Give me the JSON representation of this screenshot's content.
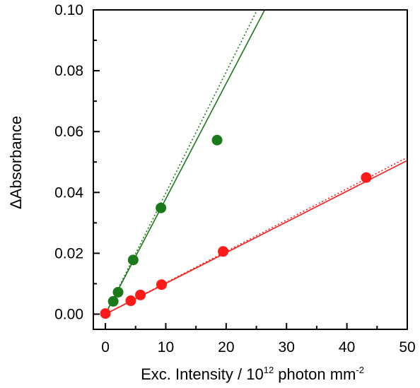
{
  "chart_data": {
    "type": "scatter",
    "title": "",
    "xlabel_main": "Exc. Intensity / 10",
    "xlabel_sup": "12",
    "xlabel_tail": " photon mm",
    "xlabel_sup2": "-2",
    "ylabel": "ΔAbsorbance",
    "xlim": [
      -2,
      50
    ],
    "ylim": [
      -0.005,
      0.1
    ],
    "xticks": [
      0,
      10,
      20,
      30,
      40,
      50
    ],
    "xtick_labels": [
      "0",
      "10",
      "20",
      "30",
      "40",
      "50"
    ],
    "yticks": [
      0.0,
      0.02,
      0.04,
      0.06,
      0.08,
      0.1
    ],
    "ytick_labels": [
      "0.00",
      "0.02",
      "0.04",
      "0.06",
      "0.08",
      "0.10"
    ],
    "grid": false,
    "series": [
      {
        "color": "#1a7a1a",
        "points": [
          {
            "x": 1.3,
            "y": 0.0042
          },
          {
            "x": 2.1,
            "y": 0.0072
          },
          {
            "x": 4.6,
            "y": 0.0178
          },
          {
            "x": 9.2,
            "y": 0.0349
          },
          {
            "x": 18.5,
            "y": 0.0572
          }
        ],
        "fit_solid": {
          "slope": 0.00379,
          "intercept": 0.0
        },
        "fit_dotted": {
          "slope": 0.00398,
          "intercept": 0.0
        }
      },
      {
        "color": "#ff1a1a",
        "points": [
          {
            "x": 0.0,
            "y": 0.0002
          },
          {
            "x": 4.2,
            "y": 0.0044
          },
          {
            "x": 5.8,
            "y": 0.0063
          },
          {
            "x": 9.3,
            "y": 0.0097
          },
          {
            "x": 19.5,
            "y": 0.0206
          },
          {
            "x": 43.2,
            "y": 0.0449
          }
        ],
        "fit_solid": {
          "slope": 0.00101,
          "intercept": 0.0
        },
        "fit_dotted": {
          "slope": 0.00103,
          "intercept": 0.0
        }
      }
    ]
  }
}
